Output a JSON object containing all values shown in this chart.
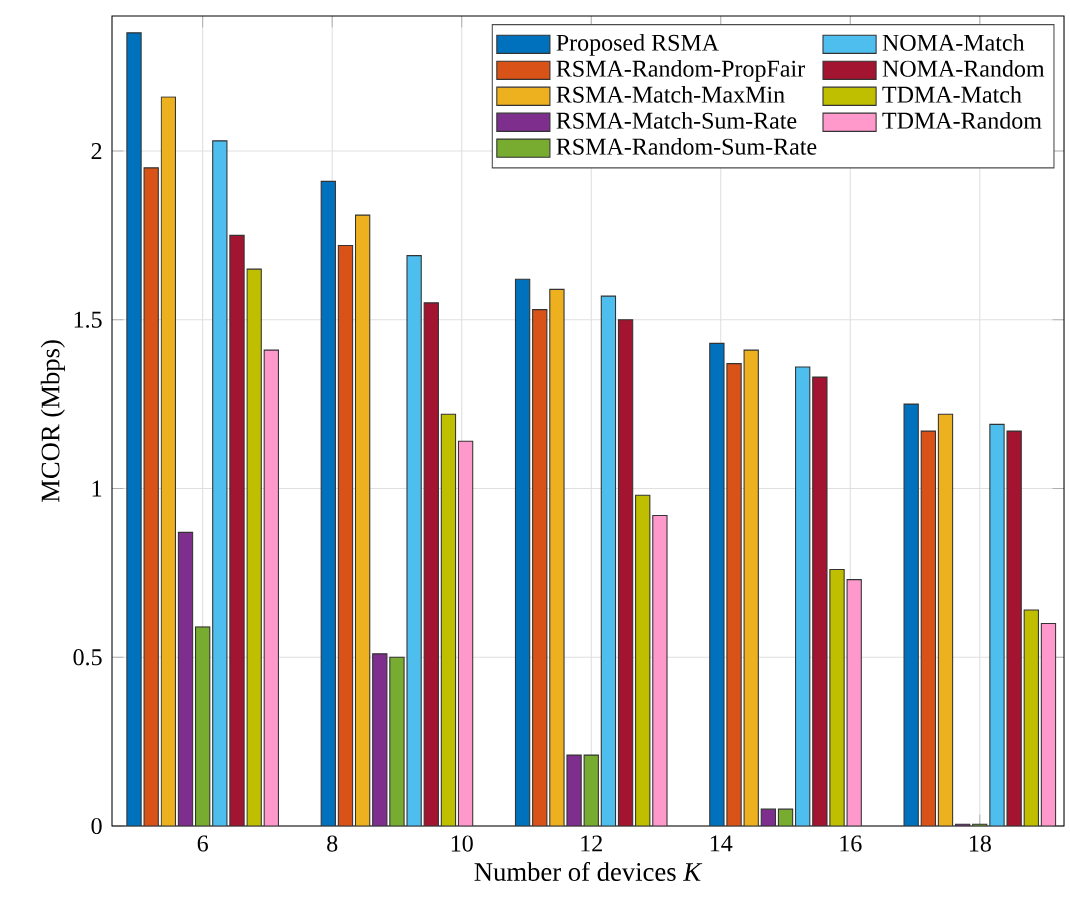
{
  "chart_data": {
    "type": "bar",
    "xlabel": "Number of devices *K*",
    "ylabel": "MCOR (Mbps)",
    "x": [
      6,
      9,
      12,
      15,
      18
    ],
    "xlim": [
      4.6,
      19.3
    ],
    "xticks": [
      6,
      8,
      10,
      12,
      14,
      16,
      18
    ],
    "ylim": [
      0,
      2.4
    ],
    "yticks": [
      0,
      0.5,
      1,
      1.5,
      2
    ],
    "grid": true,
    "legend": "top right",
    "series": [
      {
        "name": "Proposed RSMA",
        "color": "#0072bd",
        "values": [
          2.35,
          1.91,
          1.62,
          1.43,
          1.25
        ]
      },
      {
        "name": "RSMA-Random-PropFair",
        "color": "#d95319",
        "values": [
          1.95,
          1.72,
          1.53,
          1.37,
          1.17
        ]
      },
      {
        "name": "RSMA-Match-MaxMin",
        "color": "#edb120",
        "values": [
          2.16,
          1.81,
          1.59,
          1.41,
          1.22
        ]
      },
      {
        "name": "RSMA-Match-Sum-Rate",
        "color": "#7e2f8e",
        "values": [
          0.87,
          0.51,
          0.21,
          0.05,
          0.005
        ]
      },
      {
        "name": "RSMA-Random-Sum-Rate",
        "color": "#77ac30",
        "values": [
          0.59,
          0.5,
          0.21,
          0.05,
          0.005
        ]
      },
      {
        "name": "NOMA-Match",
        "color": "#4dbeee",
        "values": [
          2.03,
          1.69,
          1.57,
          1.36,
          1.19
        ]
      },
      {
        "name": "NOMA-Random",
        "color": "#a2142f",
        "values": [
          1.75,
          1.55,
          1.5,
          1.33,
          1.17
        ]
      },
      {
        "name": "TDMA-Match",
        "color": "#bfbf00",
        "values": [
          1.65,
          1.22,
          0.98,
          0.76,
          0.64
        ]
      },
      {
        "name": "TDMA-Random",
        "color": "#ff99cc",
        "values": [
          1.41,
          1.14,
          0.92,
          0.73,
          0.6
        ]
      }
    ]
  }
}
